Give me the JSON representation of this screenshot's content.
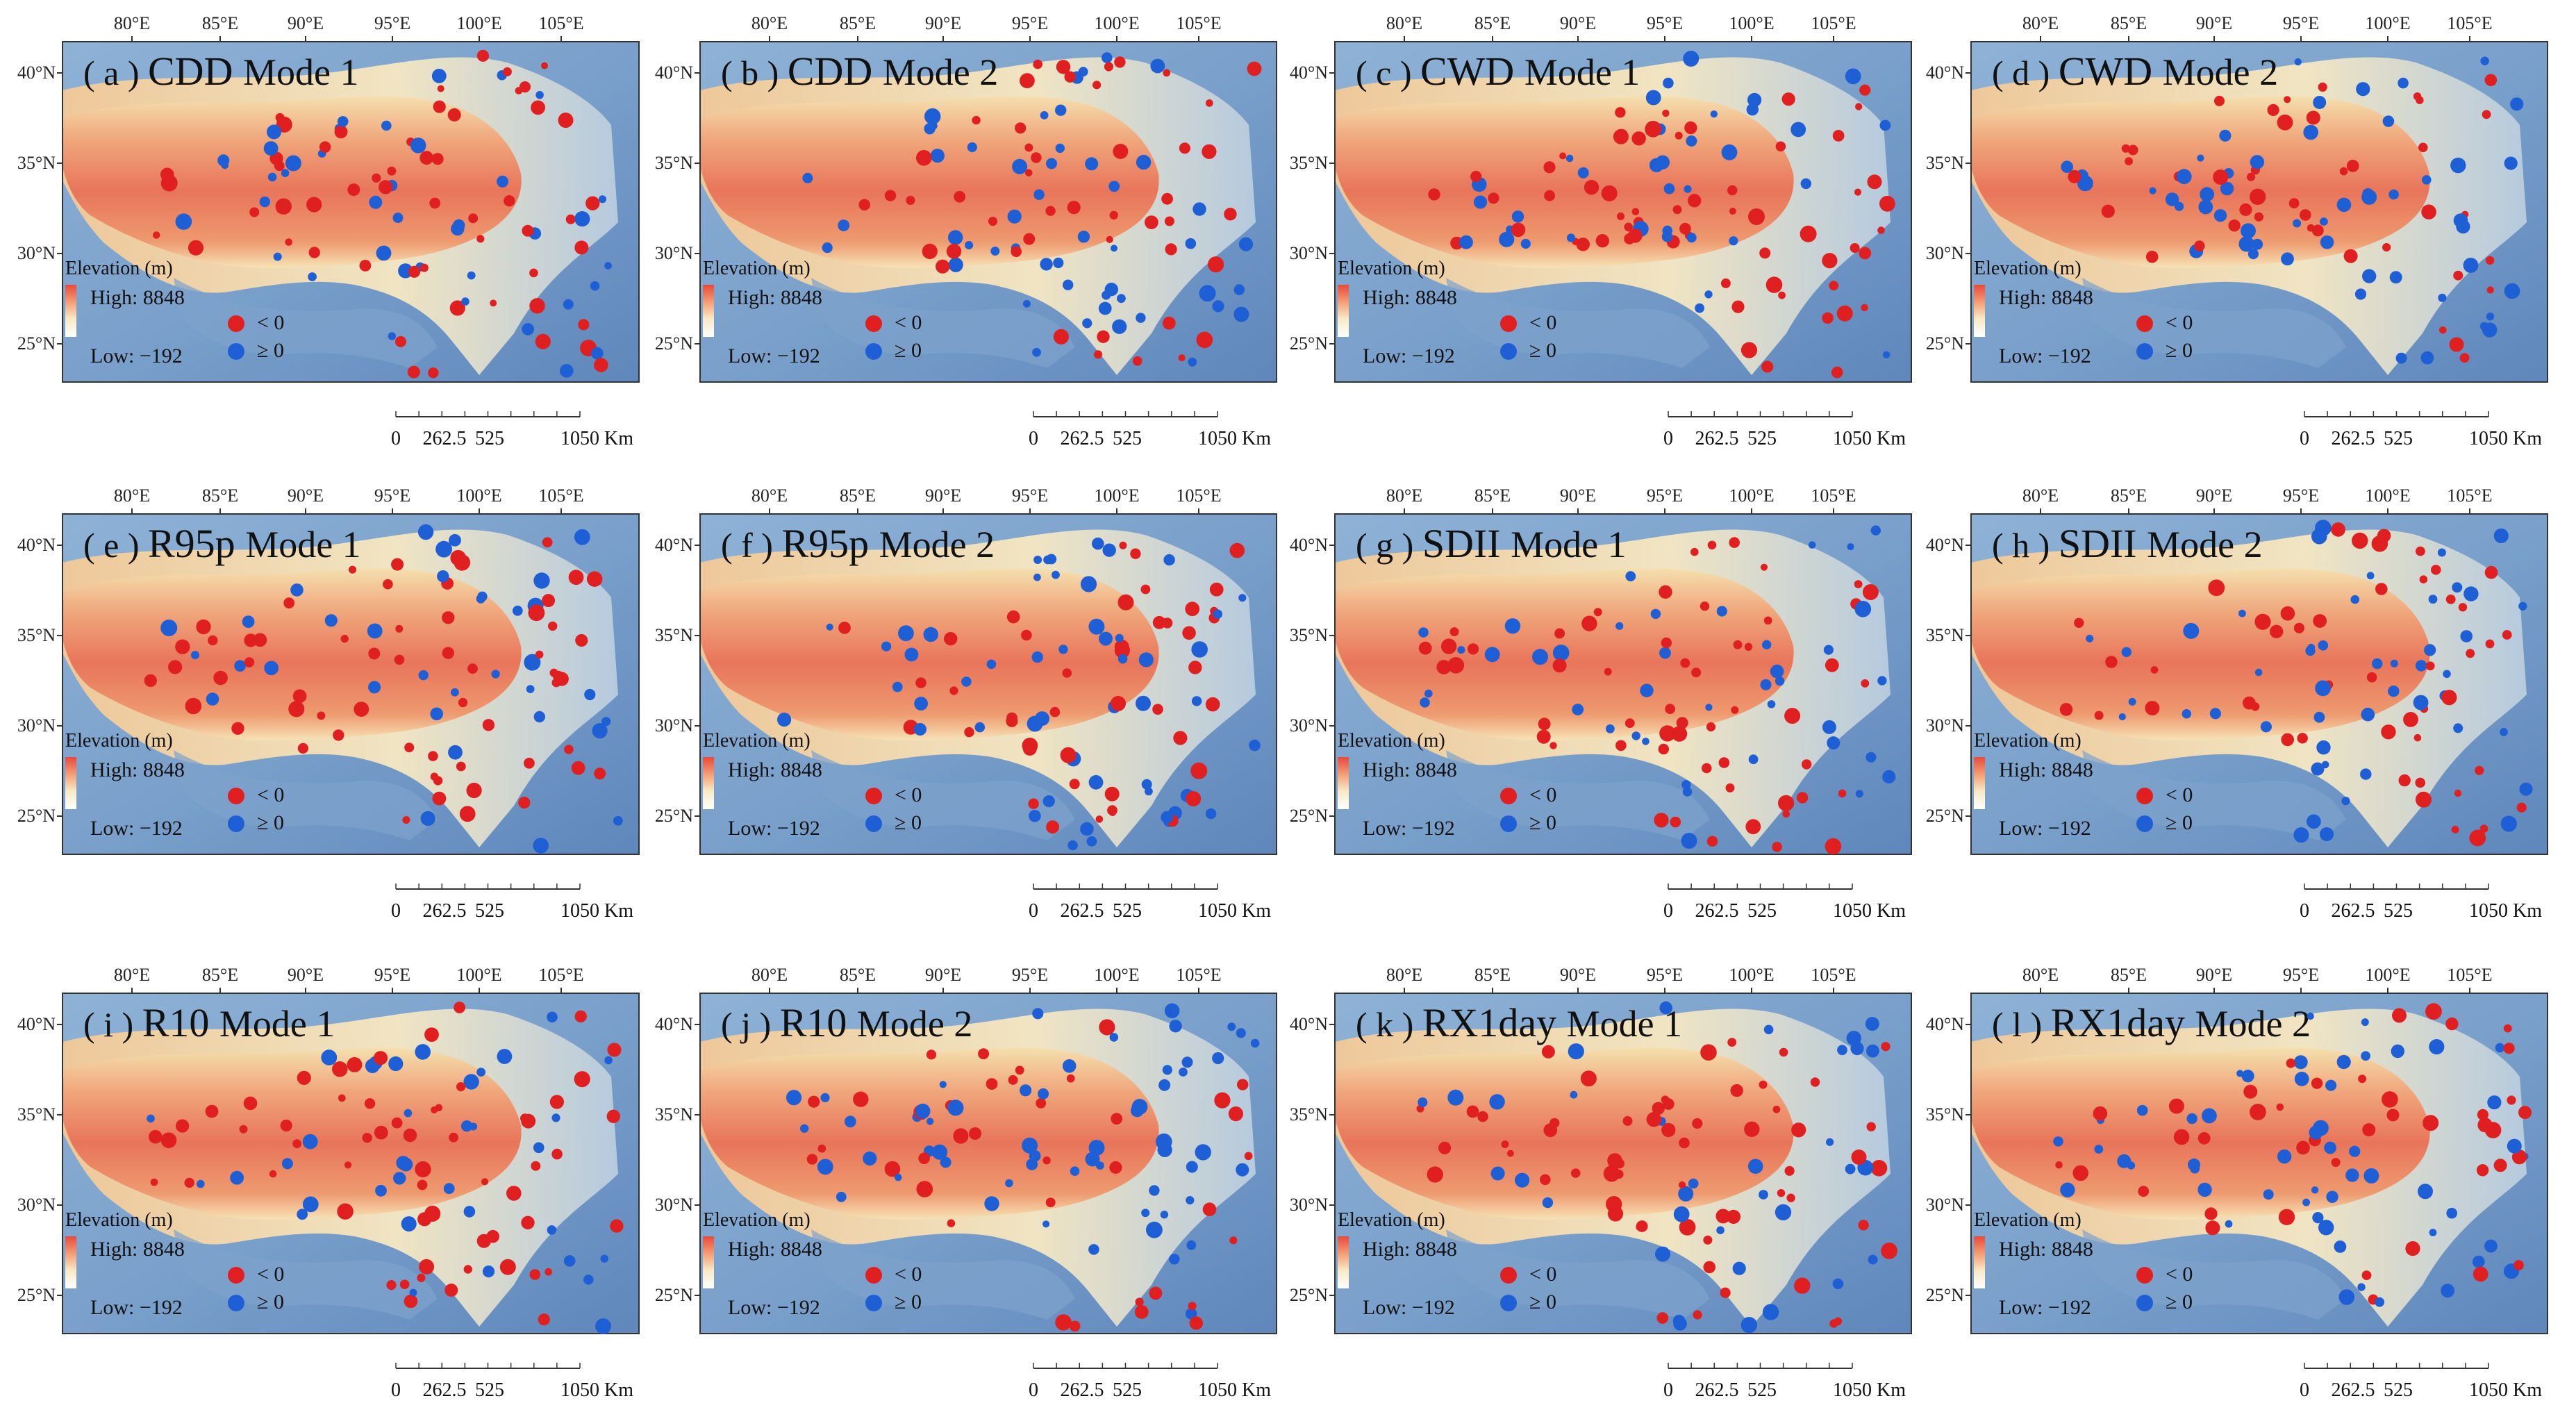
{
  "figure": {
    "longitude_ticks": [
      "80°E",
      "85°E",
      "90°E",
      "95°E",
      "100°E",
      "105°E"
    ],
    "latitude_ticks": [
      "40°N",
      "35°N",
      "30°N",
      "25°N"
    ],
    "legend": {
      "title": "Elevation (m)",
      "high": "High: 8848",
      "low": "Low: −192",
      "negative": "< 0",
      "positive": "≥ 0"
    },
    "scalebar": {
      "ticks": [
        "0",
        "262.5",
        "525",
        "1050"
      ],
      "unit": "Km"
    },
    "colors": {
      "negative_dot": "#e02020",
      "positive_dot": "#1f5fd6",
      "plateau_high": "#e8765a",
      "plateau_mid": "#f6d8a8",
      "lowland": "#6f97c6"
    },
    "panels": [
      {
        "label": "a",
        "index": "CDD",
        "mode": "Mode 1"
      },
      {
        "label": "b",
        "index": "CDD",
        "mode": "Mode 2"
      },
      {
        "label": "c",
        "index": "CWD",
        "mode": "Mode 1"
      },
      {
        "label": "d",
        "index": "CWD",
        "mode": "Mode 2"
      },
      {
        "label": "e",
        "index": "R95p",
        "mode": "Mode 1"
      },
      {
        "label": "f",
        "index": "R95p",
        "mode": "Mode 2"
      },
      {
        "label": "g",
        "index": "SDII",
        "mode": "Mode 1"
      },
      {
        "label": "h",
        "index": "SDII",
        "mode": "Mode 2"
      },
      {
        "label": "i",
        "index": "R10",
        "mode": "Mode 1"
      },
      {
        "label": "j",
        "index": "R10",
        "mode": "Mode 2"
      },
      {
        "label": "k",
        "index": "RX1day",
        "mode": "Mode 1"
      },
      {
        "label": "l",
        "index": "RX1day",
        "mode": "Mode 2"
      }
    ]
  }
}
